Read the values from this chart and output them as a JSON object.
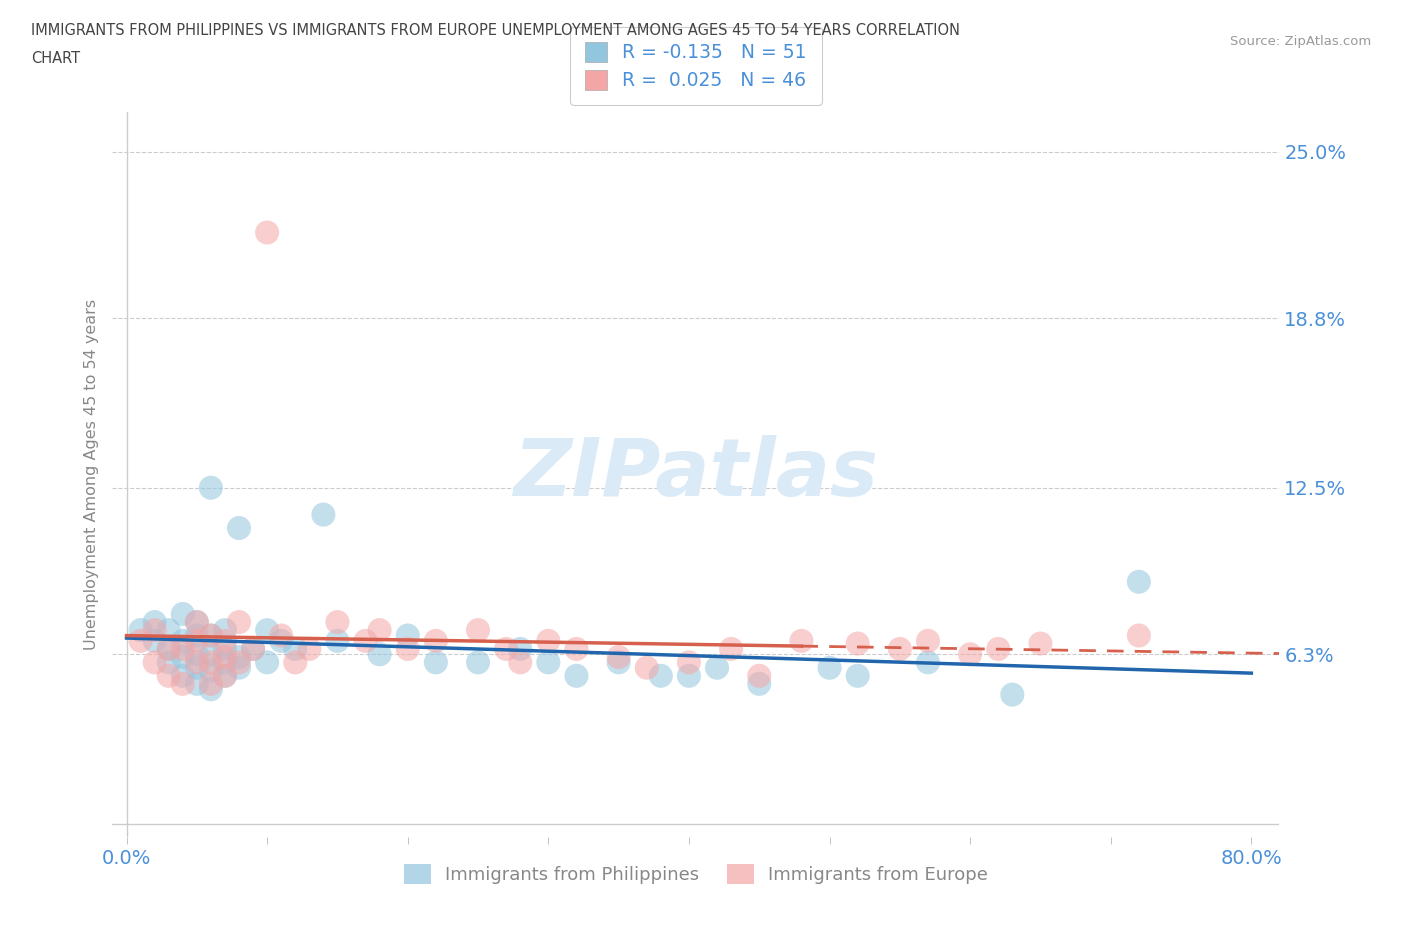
{
  "title_line1": "IMMIGRANTS FROM PHILIPPINES VS IMMIGRANTS FROM EUROPE UNEMPLOYMENT AMONG AGES 45 TO 54 YEARS CORRELATION",
  "title_line2": "CHART",
  "source": "Source: ZipAtlas.com",
  "ylabel": "Unemployment Among Ages 45 to 54 years",
  "xlim": [
    -0.01,
    0.82
  ],
  "ylim": [
    -0.005,
    0.265
  ],
  "yticks": [
    0.063,
    0.125,
    0.188,
    0.25
  ],
  "ytick_labels": [
    "6.3%",
    "12.5%",
    "18.8%",
    "25.0%"
  ],
  "xticks": [
    0.0,
    0.1,
    0.2,
    0.3,
    0.4,
    0.5,
    0.6,
    0.7,
    0.8
  ],
  "xtick_labels": [
    "0.0%",
    "",
    "",
    "",
    "",
    "",
    "",
    "",
    "80.0%"
  ],
  "legend_label_phil": "R = -0.135   N = 51",
  "legend_label_euro": "R =  0.025   N = 46",
  "legend_label1": "Immigrants from Philippines",
  "legend_label2": "Immigrants from Europe",
  "philippines_color": "#92c5de",
  "europe_color": "#f4a6a6",
  "trend_philippines_color": "#2166ac",
  "trend_europe_color": "#d6604d",
  "watermark": "ZIPatlas",
  "watermark_color": "#daeaf7",
  "background_color": "#ffffff",
  "grid_color": "#cccccc",
  "title_color": "#444444",
  "tick_color": "#4a90d9",
  "philippines_scatter_x": [
    0.01,
    0.02,
    0.02,
    0.03,
    0.03,
    0.03,
    0.04,
    0.04,
    0.04,
    0.04,
    0.05,
    0.05,
    0.05,
    0.05,
    0.05,
    0.06,
    0.06,
    0.06,
    0.06,
    0.06,
    0.07,
    0.07,
    0.07,
    0.07,
    0.08,
    0.08,
    0.08,
    0.09,
    0.1,
    0.1,
    0.11,
    0.12,
    0.14,
    0.15,
    0.18,
    0.2,
    0.22,
    0.25,
    0.28,
    0.3,
    0.32,
    0.35,
    0.38,
    0.4,
    0.42,
    0.45,
    0.5,
    0.52,
    0.57,
    0.63,
    0.72
  ],
  "philippines_scatter_y": [
    0.072,
    0.068,
    0.075,
    0.06,
    0.065,
    0.072,
    0.055,
    0.062,
    0.068,
    0.078,
    0.052,
    0.058,
    0.063,
    0.07,
    0.075,
    0.05,
    0.057,
    0.063,
    0.07,
    0.125,
    0.055,
    0.06,
    0.065,
    0.072,
    0.058,
    0.062,
    0.11,
    0.065,
    0.06,
    0.072,
    0.068,
    0.065,
    0.115,
    0.068,
    0.063,
    0.07,
    0.06,
    0.06,
    0.065,
    0.06,
    0.055,
    0.06,
    0.055,
    0.055,
    0.058,
    0.052,
    0.058,
    0.055,
    0.06,
    0.048,
    0.09
  ],
  "europe_scatter_x": [
    0.01,
    0.02,
    0.02,
    0.03,
    0.03,
    0.04,
    0.04,
    0.05,
    0.05,
    0.05,
    0.06,
    0.06,
    0.06,
    0.07,
    0.07,
    0.07,
    0.08,
    0.08,
    0.09,
    0.1,
    0.11,
    0.12,
    0.13,
    0.15,
    0.17,
    0.18,
    0.2,
    0.22,
    0.25,
    0.27,
    0.28,
    0.3,
    0.32,
    0.35,
    0.37,
    0.4,
    0.43,
    0.45,
    0.48,
    0.52,
    0.55,
    0.57,
    0.6,
    0.62,
    0.65,
    0.72
  ],
  "europe_scatter_y": [
    0.068,
    0.06,
    0.072,
    0.055,
    0.065,
    0.052,
    0.065,
    0.06,
    0.068,
    0.075,
    0.052,
    0.06,
    0.07,
    0.055,
    0.062,
    0.068,
    0.06,
    0.075,
    0.065,
    0.22,
    0.07,
    0.06,
    0.065,
    0.075,
    0.068,
    0.072,
    0.065,
    0.068,
    0.072,
    0.065,
    0.06,
    0.068,
    0.065,
    0.062,
    0.058,
    0.06,
    0.065,
    0.055,
    0.068,
    0.067,
    0.065,
    0.068,
    0.063,
    0.065,
    0.067,
    0.07
  ]
}
